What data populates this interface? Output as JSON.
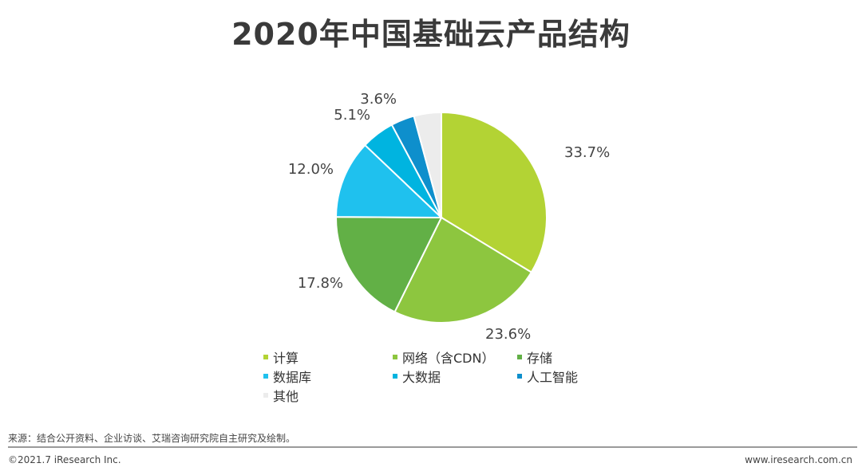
{
  "chart_data": {
    "type": "pie",
    "title": "2020年中国基础云产品结构",
    "categories": [
      "计算",
      "网络（含CDN）",
      "存储",
      "数据库",
      "大数据",
      "人工智能",
      "其他"
    ],
    "values": [
      33.7,
      23.6,
      17.8,
      12.0,
      5.1,
      3.6,
      4.2
    ],
    "labels": [
      "33.7%",
      "23.6%",
      "17.8%",
      "12.0%",
      "5.1%",
      "3.6%",
      ""
    ],
    "colors": [
      "#b3d334",
      "#8dc63f",
      "#62b046",
      "#1fc1ee",
      "#00b4e0",
      "#0e8fcc",
      "#ececec"
    ],
    "legend_position": "bottom"
  },
  "footer": {
    "source": "来源：结合公开资料、企业访谈、艾瑞咨询研究院自主研究及绘制。",
    "copyright": "©2021.7 iResearch Inc.",
    "website": "www.iresearch.com.cn"
  }
}
